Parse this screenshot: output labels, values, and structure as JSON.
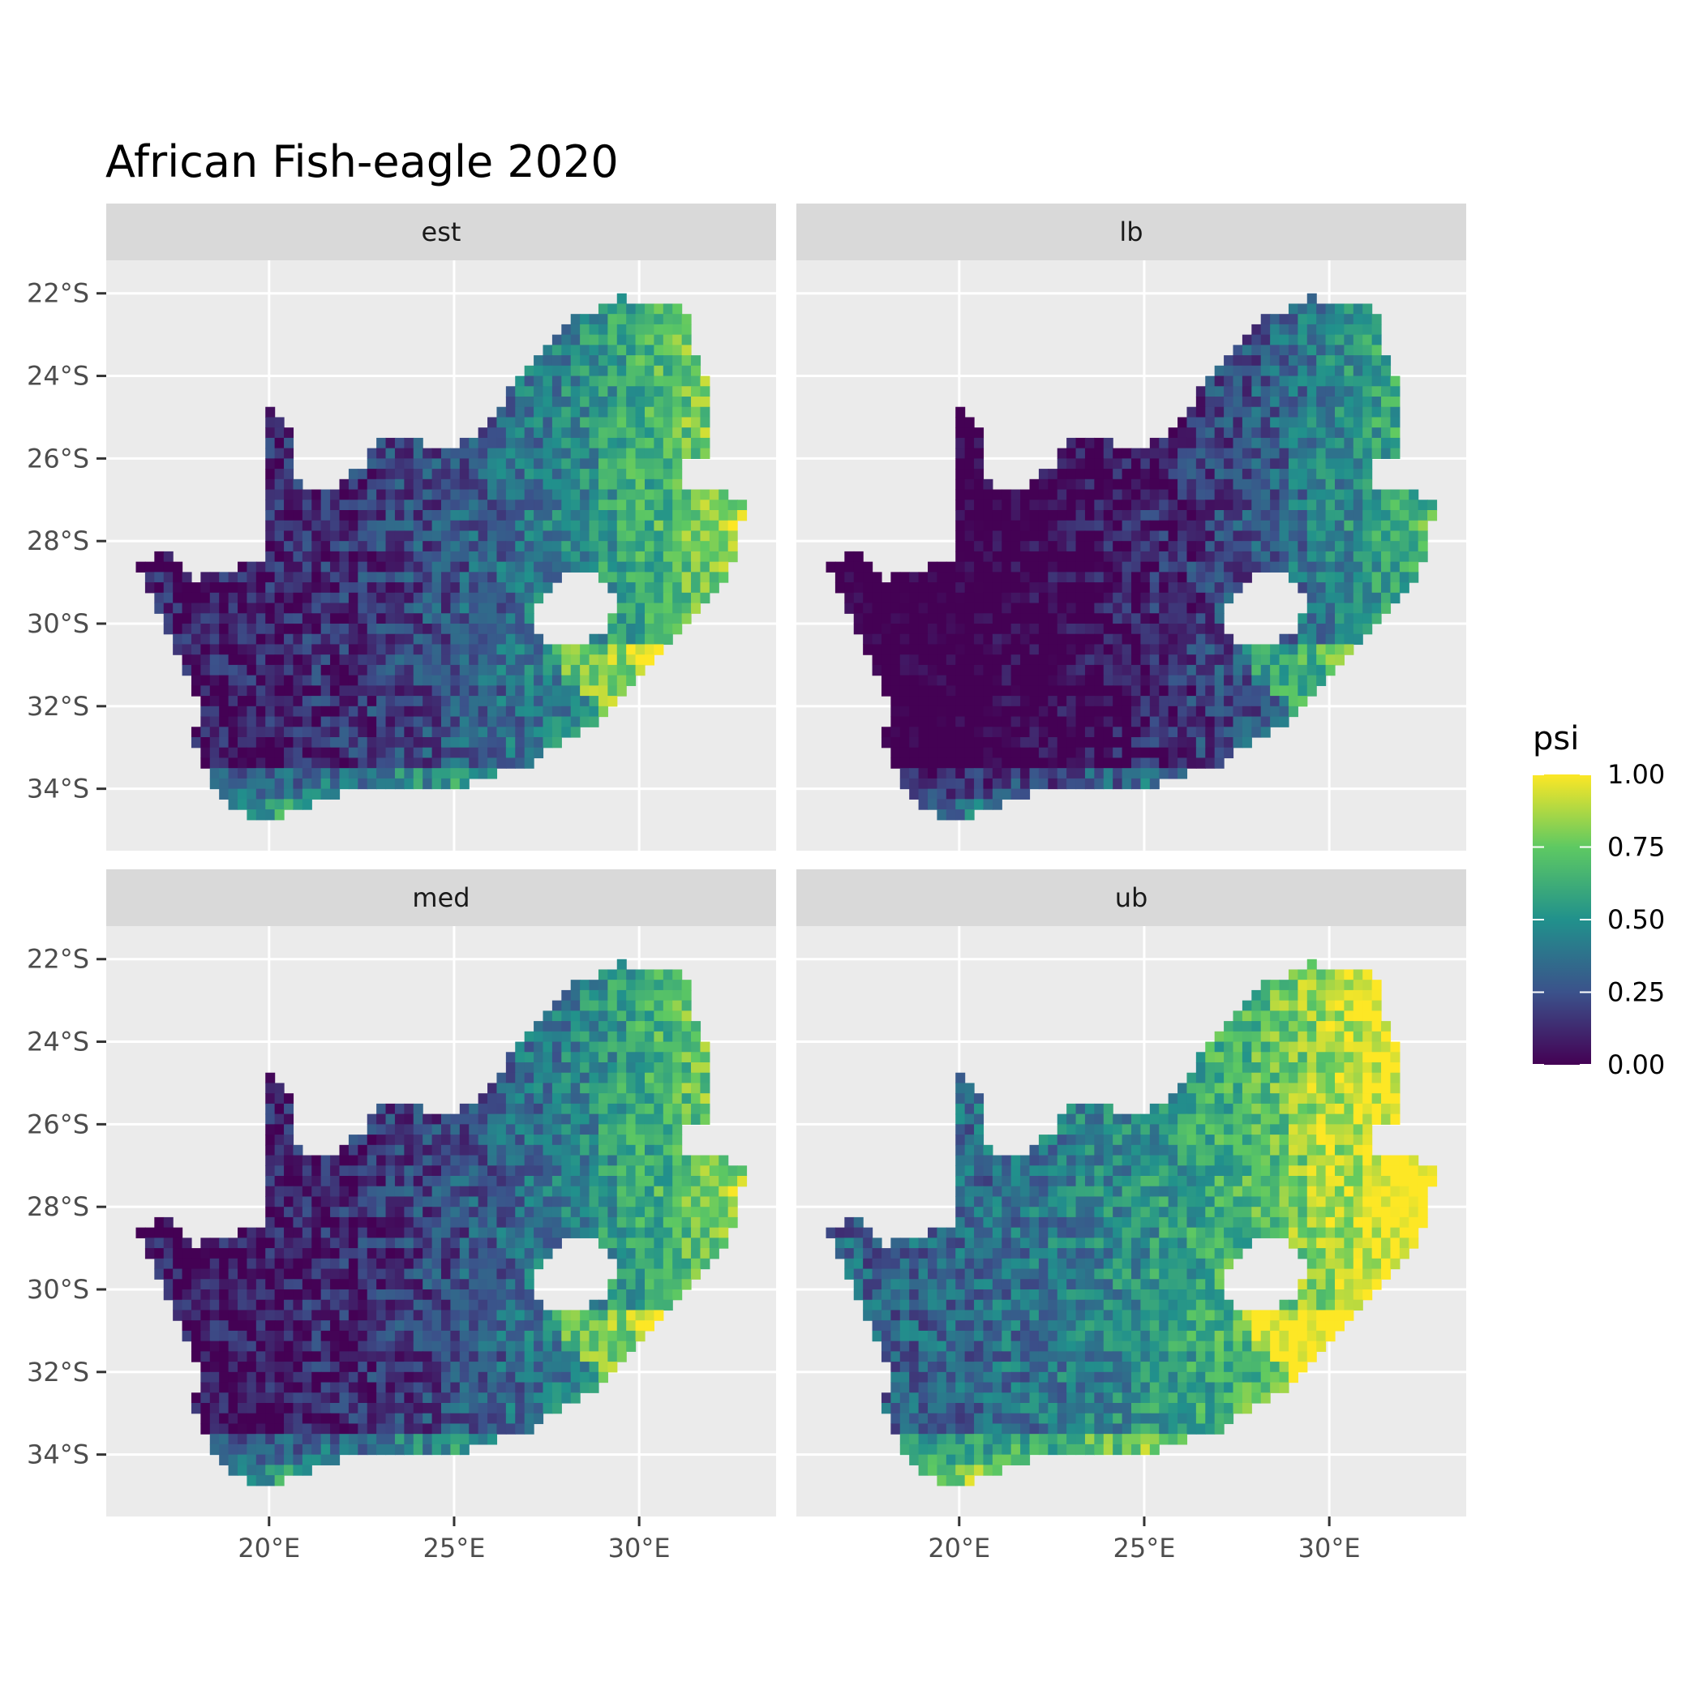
{
  "title": "African Fish-eagle 2020",
  "colors": {
    "panel_background": "#ebebeb",
    "strip_background": "#d9d9d9",
    "grid": "#ffffff",
    "lesotho_hole": "#ffffff"
  },
  "chart_data": {
    "type": "heatmap",
    "title": "African Fish-eagle 2020",
    "facets": [
      {
        "label": "est",
        "level": 0.35
      },
      {
        "label": "lb",
        "level": 0.2
      },
      {
        "label": "med",
        "level": 0.33
      },
      {
        "label": "ub",
        "level": 0.55
      }
    ],
    "x_ticks": [
      "20°E",
      "25°E",
      "30°E"
    ],
    "x_tick_values": [
      20,
      25,
      30
    ],
    "y_ticks": [
      "22°S",
      "24°S",
      "26°S",
      "28°S",
      "30°S",
      "32°S",
      "34°S"
    ],
    "y_tick_values": [
      -22,
      -24,
      -26,
      -28,
      -30,
      -32,
      -34
    ],
    "xlim": [
      15.6,
      33.7
    ],
    "ylim": [
      -35.5,
      -21.2
    ],
    "legend": {
      "title": "psi",
      "labels": [
        "1.00",
        "0.75",
        "0.50",
        "0.25",
        "0.00"
      ],
      "values": [
        1.0,
        0.75,
        0.5,
        0.25,
        0.0
      ],
      "range": [
        0,
        1
      ],
      "palette": [
        "#440154",
        "#3b528b",
        "#21918c",
        "#5ec962",
        "#fde725"
      ]
    },
    "outline": [
      [
        16.5,
        -28.6
      ],
      [
        17.2,
        -28.1
      ],
      [
        18.0,
        -28.9
      ],
      [
        19.0,
        -28.9
      ],
      [
        20.0,
        -28.4
      ],
      [
        21.0,
        -28.5
      ],
      [
        22.0,
        -28.8
      ],
      [
        23.0,
        -28.4
      ],
      [
        24.0,
        -29.2
      ],
      [
        25.0,
        -28.8
      ],
      [
        26.0,
        -28.3
      ],
      [
        27.0,
        -28.0
      ],
      [
        28.0,
        -28.7
      ],
      [
        29.0,
        -28.8
      ],
      [
        29.5,
        -28.0
      ],
      [
        31.0,
        -27.3
      ],
      [
        32.1,
        -26.9
      ],
      [
        32.9,
        -26.9
      ],
      [
        32.9,
        -27.8
      ],
      [
        32.5,
        -28.7
      ],
      [
        31.8,
        -29.5
      ],
      [
        31.0,
        -30.2
      ],
      [
        30.3,
        -31.2
      ],
      [
        29.2,
        -32.2
      ],
      [
        28.0,
        -32.8
      ],
      [
        27.0,
        -33.4
      ],
      [
        25.8,
        -33.8
      ],
      [
        25.0,
        -34.0
      ],
      [
        24.2,
        -34.1
      ],
      [
        23.0,
        -34.0
      ],
      [
        22.0,
        -34.1
      ],
      [
        21.0,
        -34.3
      ],
      [
        20.0,
        -34.8
      ],
      [
        19.3,
        -34.7
      ],
      [
        18.8,
        -34.4
      ],
      [
        18.4,
        -34.2
      ],
      [
        18.3,
        -33.5
      ],
      [
        17.9,
        -32.8
      ],
      [
        18.2,
        -32.0
      ],
      [
        17.6,
        -30.8
      ],
      [
        17.0,
        -29.7
      ],
      [
        16.5,
        -28.6
      ]
    ],
    "main_outline": [
      [
        20.0,
        -24.8
      ],
      [
        20.6,
        -25.4
      ],
      [
        20.8,
        -26.6
      ],
      [
        21.5,
        -26.8
      ],
      [
        22.5,
        -26.2
      ],
      [
        23.0,
        -25.4
      ],
      [
        24.0,
        -25.6
      ],
      [
        25.0,
        -25.7
      ],
      [
        25.6,
        -25.4
      ],
      [
        26.5,
        -24.4
      ],
      [
        27.2,
        -23.6
      ],
      [
        28.0,
        -22.7
      ],
      [
        29.0,
        -22.3
      ],
      [
        29.5,
        -22.1
      ],
      [
        30.5,
        -22.3
      ],
      [
        31.3,
        -22.4
      ],
      [
        31.5,
        -23.5
      ],
      [
        32.0,
        -24.4
      ],
      [
        32.0,
        -25.9
      ],
      [
        31.3,
        -25.9
      ],
      [
        31.0,
        -26.8
      ],
      [
        32.9,
        -26.9
      ],
      [
        32.5,
        -28.7
      ],
      [
        31.0,
        -30.2
      ],
      [
        29.2,
        -32.2
      ],
      [
        27.0,
        -33.4
      ],
      [
        25.0,
        -34.0
      ],
      [
        22.0,
        -34.1
      ],
      [
        20.0,
        -34.8
      ],
      [
        18.8,
        -34.4
      ],
      [
        18.3,
        -33.5
      ],
      [
        17.9,
        -32.8
      ],
      [
        18.2,
        -32.0
      ],
      [
        17.6,
        -30.8
      ],
      [
        16.5,
        -28.6
      ],
      [
        17.2,
        -28.1
      ],
      [
        18.0,
        -28.9
      ],
      [
        20.0,
        -28.4
      ],
      [
        20.0,
        -24.8
      ]
    ],
    "lesotho": [
      [
        27.0,
        -29.7
      ],
      [
        27.5,
        -29.2
      ],
      [
        28.2,
        -28.7
      ],
      [
        29.0,
        -28.9
      ],
      [
        29.4,
        -29.4
      ],
      [
        29.2,
        -30.1
      ],
      [
        28.5,
        -30.5
      ],
      [
        27.8,
        -30.6
      ],
      [
        27.2,
        -30.2
      ],
      [
        27.0,
        -29.7
      ]
    ]
  }
}
